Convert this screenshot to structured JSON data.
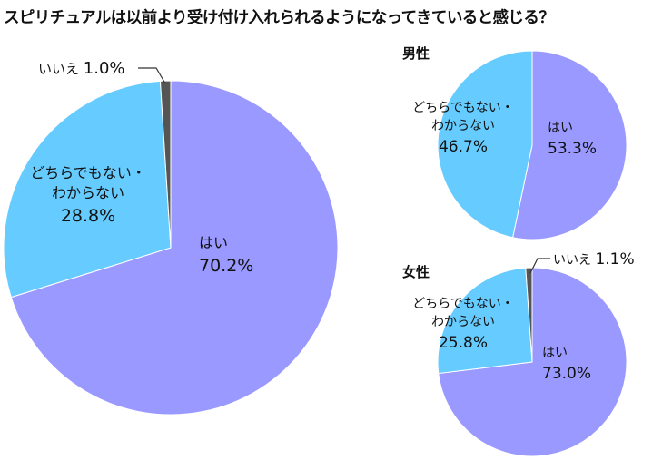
{
  "title": "スピリチュアルは以前より受け付け入れられるようになってきていると感じる？",
  "colors": {
    "yes": "#9999ff",
    "neutral": "#66ccff",
    "no": "#555555"
  },
  "chart_data": [
    {
      "type": "pie",
      "title": "",
      "categories": [
        "はい",
        "どちらでもない・わからない",
        "いいえ"
      ],
      "values": [
        70.2,
        28.8,
        1.0
      ],
      "labels": [
        "はい",
        "どちらでもない・\nわからない",
        "いいえ"
      ],
      "value_labels": [
        "70.2%",
        "28.8%",
        "1.0%"
      ]
    },
    {
      "type": "pie",
      "title": "男性",
      "categories": [
        "はい",
        "どちらでもない・わからない"
      ],
      "values": [
        53.3,
        46.7
      ],
      "labels": [
        "はい",
        "どちらでもない・\nわからない"
      ],
      "value_labels": [
        "53.3%",
        "46.7%"
      ]
    },
    {
      "type": "pie",
      "title": "女性",
      "categories": [
        "はい",
        "どちらでもない・わからない",
        "いいえ"
      ],
      "values": [
        73.0,
        25.8,
        1.1
      ],
      "labels": [
        "はい",
        "どちらでもない・\nわからない",
        "いいえ"
      ],
      "value_labels": [
        "73.0%",
        "25.8%",
        "1.1%"
      ]
    }
  ]
}
